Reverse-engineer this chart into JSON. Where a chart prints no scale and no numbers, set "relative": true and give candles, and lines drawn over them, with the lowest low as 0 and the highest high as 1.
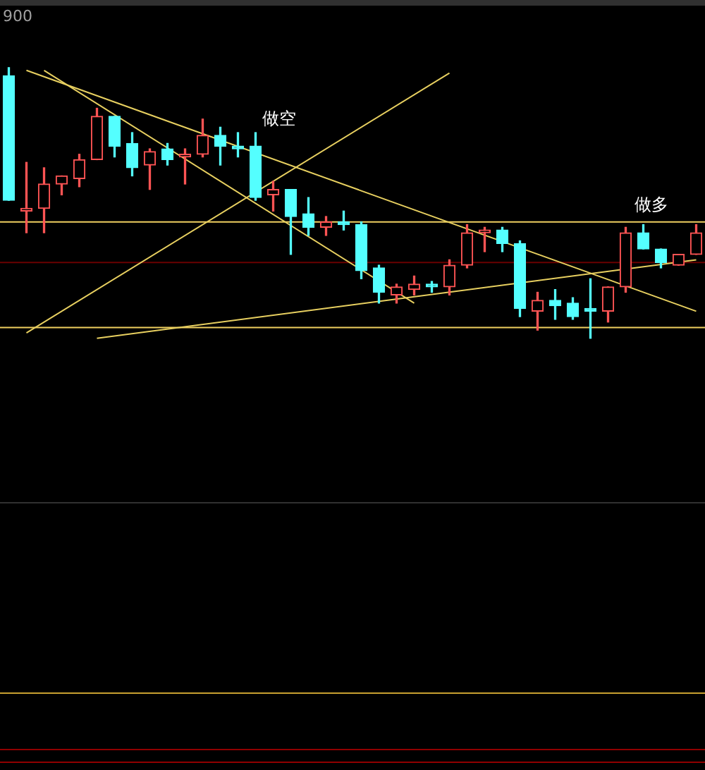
{
  "chart_data": {
    "type": "candlestick",
    "relative": true,
    "categories": [
      null,
      null,
      null,
      null,
      null,
      null,
      null,
      null,
      null,
      null,
      null,
      null,
      null,
      null,
      null,
      null,
      null,
      null,
      null,
      null,
      null,
      null,
      null,
      null,
      null,
      null,
      null,
      null,
      null,
      null,
      null,
      null,
      null,
      null,
      null,
      null,
      null,
      null,
      null,
      null
    ],
    "ohlc": [
      [
        0.97,
        1.0,
        0.51,
        0.51
      ],
      [
        0.47,
        0.65,
        0.39,
        0.48
      ],
      [
        0.48,
        0.63,
        0.39,
        0.57
      ],
      [
        0.57,
        0.6,
        0.53,
        0.6
      ],
      [
        0.59,
        0.68,
        0.56,
        0.66
      ],
      [
        0.66,
        0.85,
        0.66,
        0.82
      ],
      [
        0.82,
        0.82,
        0.67,
        0.71
      ],
      [
        0.72,
        0.76,
        0.6,
        0.63
      ],
      [
        0.64,
        0.7,
        0.55,
        0.69
      ],
      [
        0.7,
        0.72,
        0.64,
        0.66
      ],
      [
        0.67,
        0.7,
        0.57,
        0.68
      ],
      [
        0.68,
        0.81,
        0.67,
        0.75
      ],
      [
        0.75,
        0.78,
        0.64,
        0.71
      ],
      [
        0.71,
        0.76,
        0.67,
        0.7
      ],
      [
        0.71,
        0.76,
        0.51,
        0.52
      ],
      [
        0.53,
        0.58,
        0.47,
        0.55
      ],
      [
        0.55,
        0.55,
        0.31,
        0.45
      ],
      [
        0.46,
        0.52,
        0.38,
        0.41
      ],
      [
        0.41,
        0.45,
        0.38,
        0.43
      ],
      [
        0.43,
        0.47,
        0.4,
        0.42
      ],
      [
        0.42,
        0.43,
        0.22,
        0.25
      ],
      [
        0.26,
        0.27,
        0.13,
        0.17
      ],
      [
        0.16,
        0.2,
        0.13,
        0.19
      ],
      [
        0.18,
        0.23,
        0.16,
        0.2
      ],
      [
        0.2,
        0.21,
        0.17,
        0.19
      ],
      [
        0.19,
        0.29,
        0.16,
        0.27
      ],
      [
        0.27,
        0.42,
        0.26,
        0.39
      ],
      [
        0.39,
        0.41,
        0.32,
        0.4
      ],
      [
        0.4,
        0.41,
        0.32,
        0.35
      ],
      [
        0.35,
        0.36,
        0.08,
        0.11
      ],
      [
        0.1,
        0.17,
        0.03,
        0.14
      ],
      [
        0.14,
        0.18,
        0.07,
        0.12
      ],
      [
        0.13,
        0.15,
        0.07,
        0.08
      ],
      [
        0.11,
        0.22,
        0.0,
        0.1
      ],
      [
        0.1,
        0.19,
        0.06,
        0.19
      ],
      [
        0.19,
        0.41,
        0.17,
        0.39
      ],
      [
        0.39,
        0.42,
        0.33,
        0.33
      ],
      [
        0.33,
        0.33,
        0.26,
        0.28
      ],
      [
        0.27,
        0.31,
        0.27,
        0.31
      ],
      [
        0.31,
        0.42,
        0.31,
        0.39
      ]
    ],
    "colors": [
      "#54ffff",
      "#ff5454",
      "#ff5454",
      "#ff5454",
      "#ff5454",
      "#ff5454",
      "#54ffff",
      "#54ffff",
      "#ff5454",
      "#54ffff",
      "#ff5454",
      "#ff5454",
      "#54ffff",
      "#54ffff",
      "#54ffff",
      "#ff5454",
      "#54ffff",
      "#54ffff",
      "#ff5454",
      "#54ffff",
      "#54ffff",
      "#54ffff",
      "#ff5454",
      "#ff5454",
      "#54ffff",
      "#ff5454",
      "#ff5454",
      "#ff5454",
      "#54ffff",
      "#54ffff",
      "#ff5454",
      "#54ffff",
      "#54ffff",
      "#54ffff",
      "#ff5454",
      "#ff5454",
      "#54ffff",
      "#54ffff",
      "#ff5454",
      "#ff5454"
    ],
    "series": [
      {
        "type": "line",
        "color": "#e8d060",
        "values": [
          null,
          null,
          0.99,
          null,
          null,
          null,
          null,
          null,
          null,
          null,
          null,
          null,
          null,
          null,
          null,
          null,
          null,
          null,
          null,
          null,
          null,
          null,
          null,
          0.13,
          null,
          null,
          null,
          null,
          null,
          null,
          null,
          null,
          null,
          null,
          null,
          null,
          null,
          null,
          null,
          null
        ]
      },
      {
        "type": "line",
        "color": "#e8d060",
        "values": [
          null,
          0.99,
          null,
          null,
          null,
          null,
          null,
          null,
          null,
          null,
          null,
          null,
          null,
          null,
          null,
          null,
          null,
          null,
          null,
          null,
          null,
          null,
          null,
          null,
          null,
          null,
          null,
          null,
          null,
          null,
          null,
          null,
          null,
          null,
          null,
          null,
          null,
          null,
          null,
          0.1
        ]
      },
      {
        "type": "line",
        "color": "#e8d060",
        "values": [
          null,
          0.02,
          null,
          null,
          null,
          null,
          null,
          null,
          null,
          null,
          null,
          null,
          null,
          null,
          null,
          null,
          null,
          null,
          null,
          null,
          null,
          null,
          null,
          null,
          null,
          0.98,
          null,
          null,
          null,
          null,
          null,
          null,
          null,
          null,
          null,
          null,
          null,
          null,
          null,
          null
        ]
      },
      {
        "type": "line",
        "color": "#e8d060",
        "values": [
          null,
          null,
          null,
          null,
          null,
          0.0,
          null,
          null,
          null,
          null,
          null,
          null,
          null,
          null,
          null,
          null,
          null,
          null,
          null,
          null,
          null,
          null,
          null,
          null,
          null,
          null,
          null,
          null,
          null,
          null,
          null,
          null,
          null,
          null,
          null,
          null,
          null,
          null,
          null,
          0.29
        ]
      }
    ],
    "ref_lines": [
      {
        "axis": "y",
        "value": 0.43,
        "color": "#f0d060"
      },
      {
        "axis": "y",
        "value": 0.04,
        "color": "#f0d060"
      },
      {
        "axis": "y",
        "value": 0.28,
        "color": "#6a0000"
      }
    ],
    "annotations": [
      "900",
      "做空",
      "做多"
    ],
    "legend": false
  }
}
